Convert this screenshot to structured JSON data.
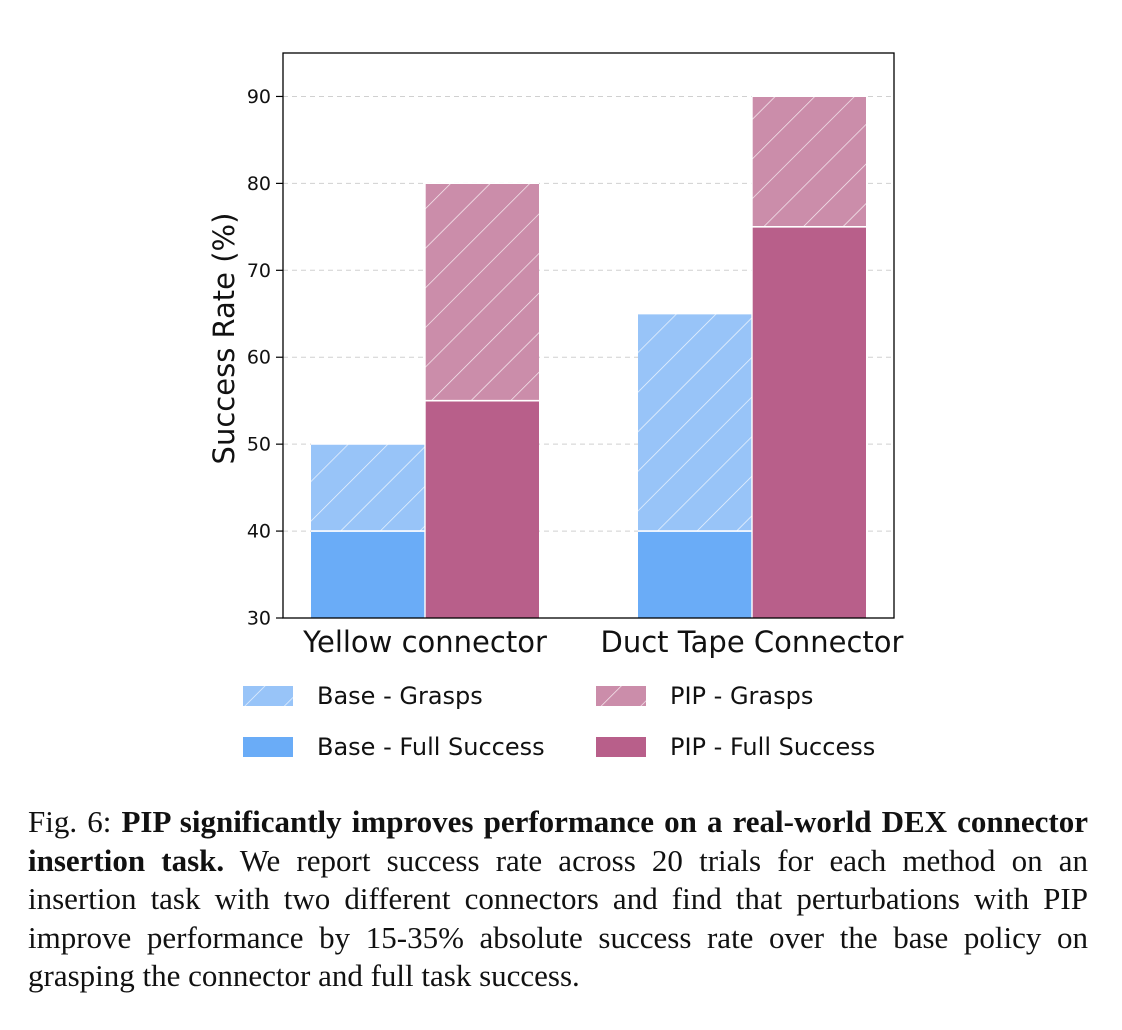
{
  "chart_data": {
    "type": "bar",
    "title": "",
    "xlabel": "",
    "ylabel": "Success Rate (%)",
    "ylim": [
      30,
      95
    ],
    "yticks": [
      30,
      40,
      50,
      60,
      70,
      80,
      90
    ],
    "grid": "horizontal dashed",
    "categories": [
      "Yellow connector",
      "Duct Tape Connector"
    ],
    "series": [
      {
        "name": "Base - Grasps",
        "group": "Base",
        "kind": "grasps",
        "color": "#98c4f8",
        "hatch": true,
        "values": [
          50,
          65
        ]
      },
      {
        "name": "Base - Full Success",
        "group": "Base",
        "kind": "full",
        "color": "#6aacf7",
        "hatch": false,
        "values": [
          40,
          40
        ]
      },
      {
        "name": "PIP - Grasps",
        "group": "PIP",
        "kind": "grasps",
        "color": "#cb8daa",
        "hatch": true,
        "values": [
          80,
          90
        ]
      },
      {
        "name": "PIP - Full Success",
        "group": "PIP",
        "kind": "full",
        "color": "#b85f8a",
        "hatch": false,
        "values": [
          55,
          75
        ]
      }
    ],
    "legend": {
      "placement": "below",
      "columns": 2
    }
  },
  "caption": {
    "label": "Fig. 6:",
    "bold": "PIP significantly improves performance on a real-world DEX connector insertion task.",
    "text": "We report success rate across 20 trials for each method on an insertion task with two different connectors and find that perturbations with PIP improve performance by 15-35% absolute success rate over the base policy on grasping the connector and full task success."
  }
}
